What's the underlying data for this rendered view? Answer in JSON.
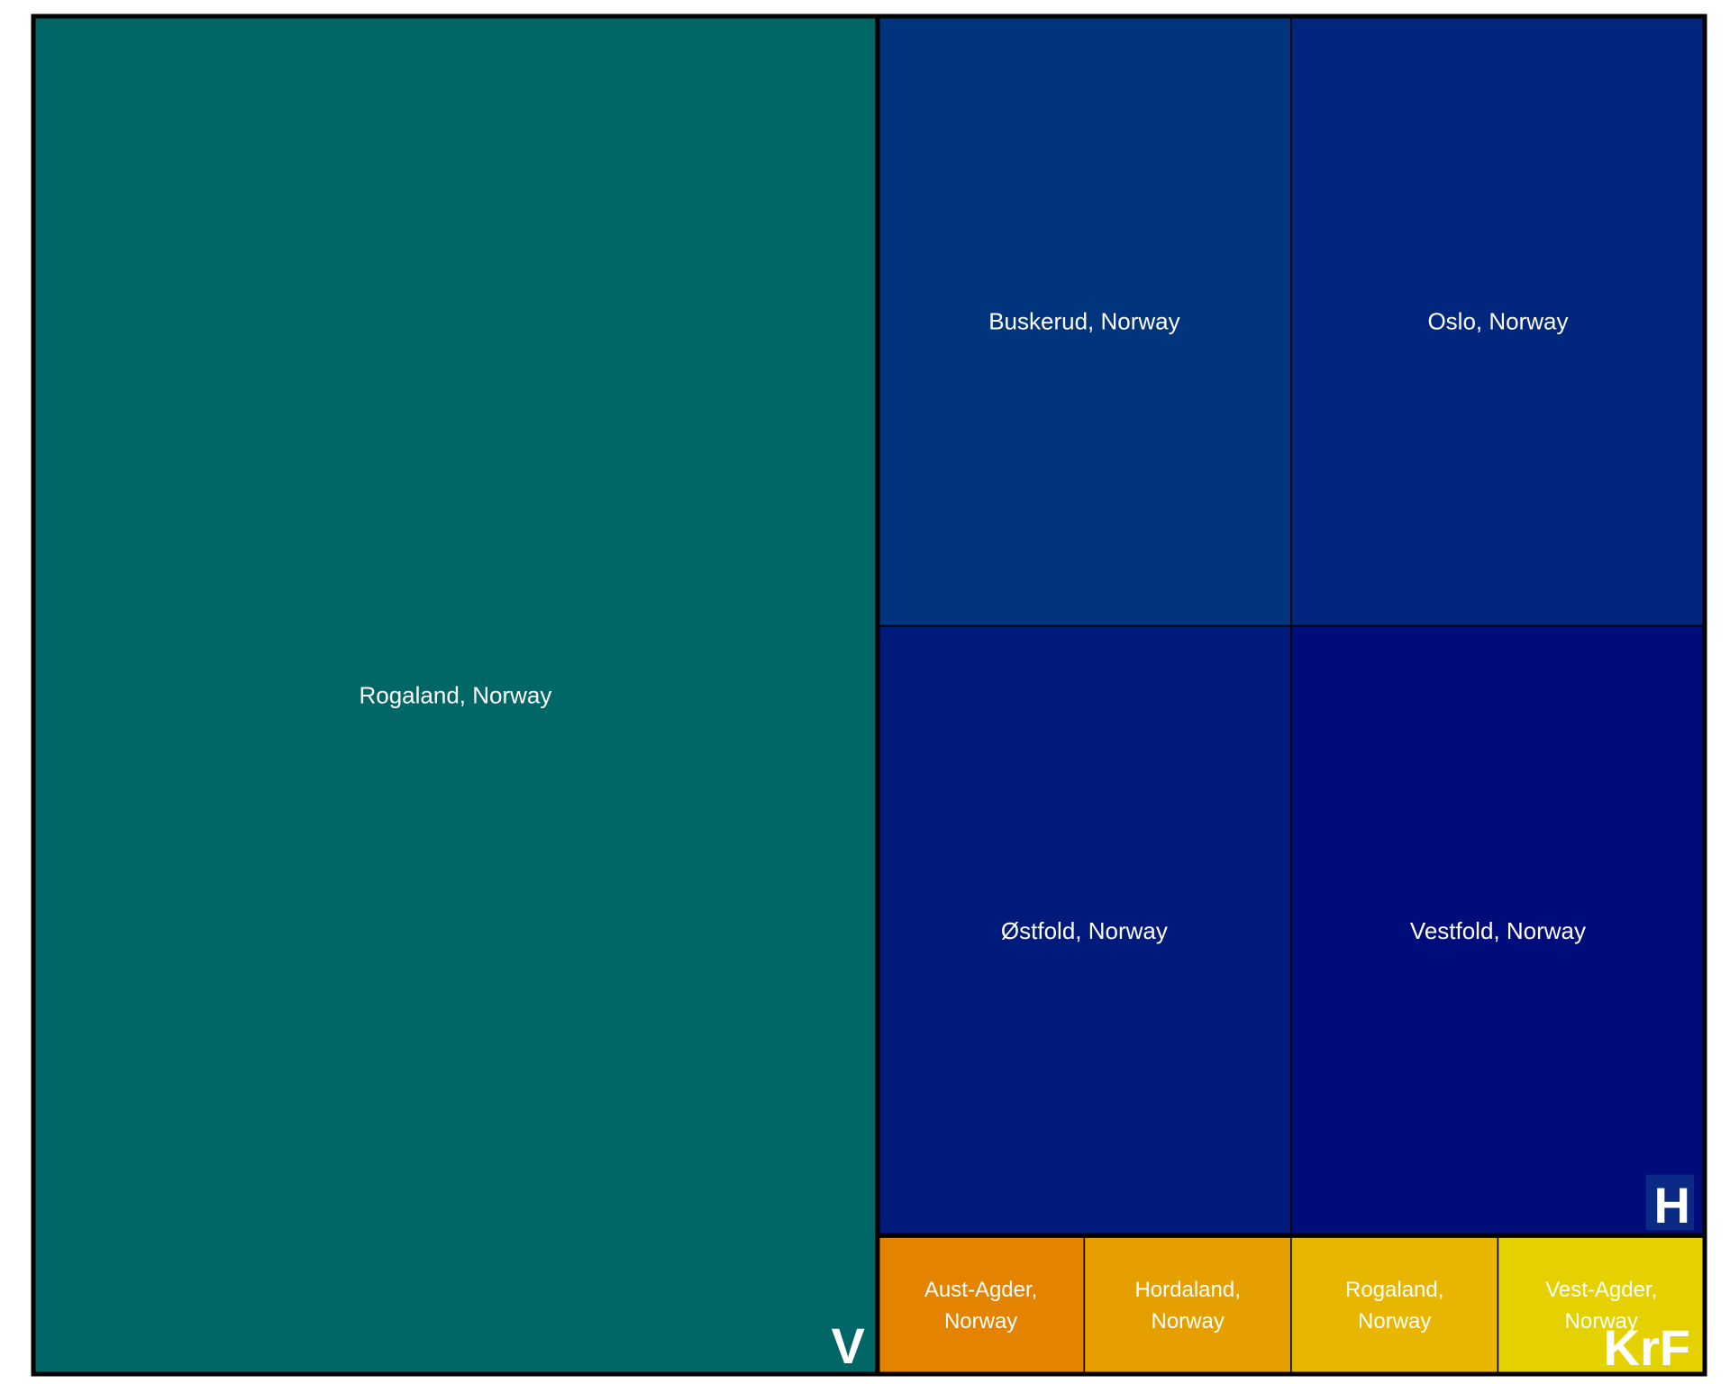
{
  "chart_data": {
    "type": "treemap",
    "groups": [
      {
        "name": "V",
        "color": "#006766",
        "cells": [
          {
            "label": "Rogaland, Norway",
            "value": 1,
            "color": "#006766"
          }
        ]
      },
      {
        "name": "H",
        "color": "#003A7C",
        "cells": [
          {
            "label": "Buskerud, Norway",
            "value": 0.22,
            "color": "#00347D"
          },
          {
            "label": "Oslo, Norway",
            "value": 0.22,
            "color": "#00267E"
          },
          {
            "label": "Østfold, Norway",
            "value": 0.22,
            "color": "#001A7B"
          },
          {
            "label": "Vestfold, Norway",
            "value": 0.22,
            "color": "#000C7A"
          }
        ]
      },
      {
        "name": "KrF",
        "color": "#E8A400",
        "cells": [
          {
            "label": "Aust-Agder, Norway",
            "value": 0.025,
            "color": "#E48300"
          },
          {
            "label": "Hordaland, Norway",
            "value": 0.025,
            "color": "#E5A000"
          },
          {
            "label": "Rogaland, Norway",
            "value": 0.025,
            "color": "#E8B600"
          },
          {
            "label": "Vest-Agder, Norway",
            "value": 0.025,
            "color": "#E6D100"
          }
        ]
      }
    ]
  }
}
